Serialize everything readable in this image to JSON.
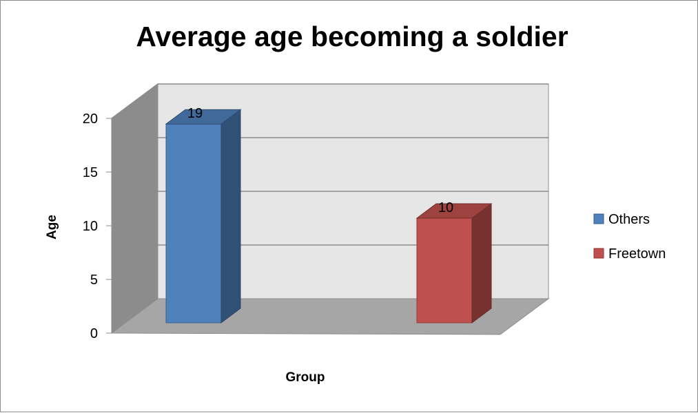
{
  "chart_data": {
    "type": "bar",
    "title": "Average age becoming a soldier",
    "xlabel": "Group",
    "ylabel": "Age",
    "ylim": [
      0,
      20
    ],
    "yticks": [
      0,
      5,
      10,
      15,
      20
    ],
    "grid": true,
    "legend_position": "right",
    "three_d": true,
    "series": [
      {
        "name": "Others",
        "value": 19,
        "color": "#4f81bd"
      },
      {
        "name": "Freetown",
        "value": 10,
        "color": "#c0504d"
      }
    ]
  }
}
